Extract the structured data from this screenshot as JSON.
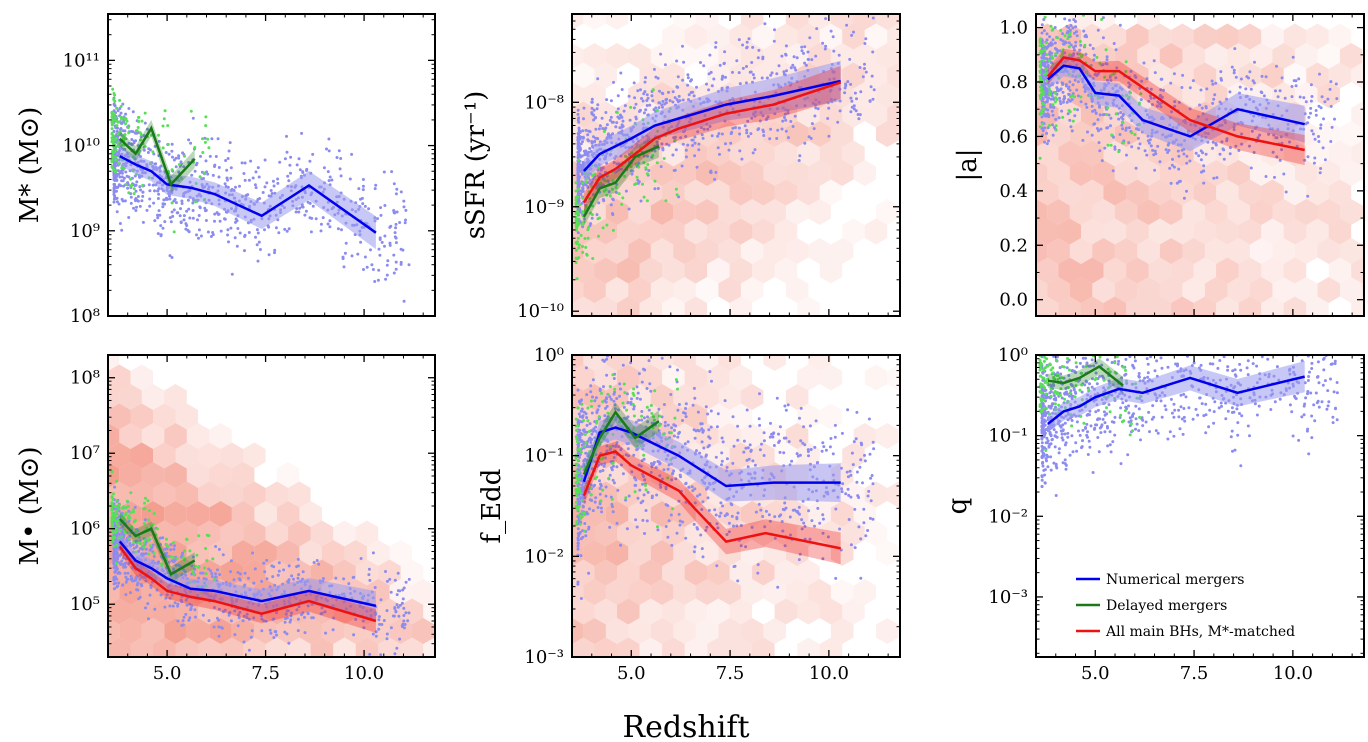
{
  "figure": {
    "xlabel": "Redshift",
    "colors": {
      "numerical": "#0000ee",
      "delayed": "#1a7a1a",
      "matched": "#ee1111",
      "scatter_blue": "#8c8cf0",
      "scatter_green": "#55e055",
      "hex": "#f28d7c",
      "band_blue": "#9a9af0"
    }
  },
  "legend": {
    "placement": "lower-right panel, bottom",
    "items": [
      {
        "key": "numerical",
        "label": "Numerical mergers"
      },
      {
        "key": "delayed",
        "label": "Delayed mergers"
      },
      {
        "key": "matched",
        "label": "All main BHs, M*-matched"
      }
    ]
  },
  "chart_data": [
    {
      "id": "mstar",
      "type": "scatter",
      "ylabel": "M* (M⊙)",
      "yscale": "log",
      "ylim": [
        100000000.0,
        350000000000.0
      ],
      "xlim": [
        3.5,
        11.8
      ],
      "hexbin": false,
      "xticks": [],
      "yticks": [
        {
          "v": 100000000.0,
          "label": "10^8"
        },
        {
          "v": 1000000000.0,
          "label": "10^9"
        },
        {
          "v": 10000000000.0,
          "label": "10^10"
        },
        {
          "v": 100000000000.0,
          "label": "10^11"
        }
      ],
      "series": [
        {
          "key": "numerical",
          "x": [
            3.8,
            4.2,
            4.6,
            5.0,
            5.6,
            6.2,
            7.4,
            8.6,
            10.3
          ],
          "y": [
            7500000000.0,
            6000000000.0,
            5000000000.0,
            3500000000.0,
            3200000000.0,
            2700000000.0,
            1500000000.0,
            3400000000.0,
            950000000.0
          ]
        },
        {
          "key": "delayed",
          "x": [
            3.8,
            4.2,
            4.6,
            5.1,
            5.7
          ],
          "y": [
            12000000000.0,
            8000000000.0,
            16000000000.0,
            3500000000.0,
            7000000000.0
          ]
        }
      ]
    },
    {
      "id": "ssfr",
      "type": "scatter",
      "ylabel": "sSFR (yr⁻¹)",
      "yscale": "log",
      "ylim": [
        9e-11,
        7e-08
      ],
      "xlim": [
        3.5,
        11.8
      ],
      "hexbin": true,
      "xticks": [],
      "yticks": [
        {
          "v": 1e-10,
          "label": "10^-10"
        },
        {
          "v": 1e-09,
          "label": "10^-9"
        },
        {
          "v": 1e-08,
          "label": "10^-8"
        }
      ],
      "series": [
        {
          "key": "numerical",
          "x": [
            3.8,
            4.2,
            4.6,
            5.0,
            5.6,
            6.2,
            7.4,
            8.6,
            10.3
          ],
          "y": [
            2.2e-09,
            3.2e-09,
            3.8e-09,
            4.5e-09,
            6e-09,
            7e-09,
            9.5e-09,
            1.15e-08,
            1.6e-08
          ]
        },
        {
          "key": "delayed",
          "x": [
            3.8,
            4.2,
            4.6,
            5.1,
            5.7
          ],
          "y": [
            8e-10,
            1.5e-09,
            1.7e-09,
            3e-09,
            3.8e-09
          ]
        },
        {
          "key": "matched",
          "x": [
            3.8,
            4.2,
            4.6,
            5.0,
            5.6,
            6.2,
            7.4,
            8.6,
            10.3
          ],
          "y": [
            1.1e-09,
            1.9e-09,
            2.3e-09,
            3e-09,
            4.5e-09,
            5.6e-09,
            7.8e-09,
            9.5e-09,
            1.55e-08
          ]
        }
      ]
    },
    {
      "id": "spin",
      "type": "scatter",
      "ylabel": "|a|",
      "yscale": "linear",
      "ylim": [
        -0.06,
        1.05
      ],
      "xlim": [
        3.5,
        11.8
      ],
      "hexbin": true,
      "xticks": [],
      "yticks": [
        {
          "v": 0.0,
          "label": "0.0"
        },
        {
          "v": 0.2,
          "label": "0.2"
        },
        {
          "v": 0.4,
          "label": "0.4"
        },
        {
          "v": 0.6,
          "label": "0.6"
        },
        {
          "v": 0.8,
          "label": "0.8"
        },
        {
          "v": 1.0,
          "label": "1.0"
        }
      ],
      "series": [
        {
          "key": "numerical",
          "x": [
            3.8,
            4.2,
            4.6,
            5.0,
            5.6,
            6.2,
            7.4,
            8.6,
            10.3
          ],
          "y": [
            0.81,
            0.86,
            0.85,
            0.76,
            0.75,
            0.66,
            0.6,
            0.7,
            0.645
          ]
        },
        {
          "key": "matched",
          "x": [
            3.8,
            4.2,
            4.6,
            5.0,
            5.6,
            6.2,
            7.4,
            8.6,
            10.3
          ],
          "y": [
            0.82,
            0.89,
            0.88,
            0.84,
            0.84,
            0.78,
            0.66,
            0.6,
            0.55
          ]
        }
      ]
    },
    {
      "id": "mbh",
      "type": "scatter",
      "ylabel": "M• (M⊙)",
      "yscale": "log",
      "ylim": [
        20000.0,
        200000000.0
      ],
      "xlim": [
        3.5,
        11.8
      ],
      "hexbin": true,
      "xticks": [
        {
          "v": 5.0,
          "label": "5.0"
        },
        {
          "v": 7.5,
          "label": "7.5"
        },
        {
          "v": 10.0,
          "label": "10.0"
        }
      ],
      "yticks": [
        {
          "v": 100000.0,
          "label": "10^5"
        },
        {
          "v": 1000000.0,
          "label": "10^6"
        },
        {
          "v": 10000000.0,
          "label": "10^7"
        },
        {
          "v": 100000000.0,
          "label": "10^8"
        }
      ],
      "series": [
        {
          "key": "numerical",
          "x": [
            3.8,
            4.2,
            4.6,
            5.0,
            5.6,
            6.2,
            7.4,
            8.6,
            10.3
          ],
          "y": [
            680000.0,
            380000.0,
            300000.0,
            220000.0,
            160000.0,
            150000.0,
            110000.0,
            150000.0,
            95000.0
          ]
        },
        {
          "key": "delayed",
          "x": [
            3.8,
            4.2,
            4.6,
            5.1,
            5.7
          ],
          "y": [
            1350000.0,
            800000.0,
            1000000.0,
            250000.0,
            380000.0
          ]
        },
        {
          "key": "matched",
          "x": [
            3.8,
            4.2,
            4.6,
            5.0,
            5.6,
            6.2,
            7.4,
            8.6,
            10.3
          ],
          "y": [
            580000.0,
            300000.0,
            220000.0,
            150000.0,
            125000.0,
            110000.0,
            75000.0,
            110000.0,
            60000.0
          ]
        }
      ]
    },
    {
      "id": "fedd",
      "type": "scatter",
      "ylabel": "f_Edd",
      "yscale": "log",
      "ylim": [
        0.001,
        1.0
      ],
      "xlim": [
        3.5,
        11.8
      ],
      "hexbin": true,
      "xticks": [
        {
          "v": 5.0,
          "label": "5.0"
        },
        {
          "v": 7.5,
          "label": "7.5"
        },
        {
          "v": 10.0,
          "label": "10.0"
        }
      ],
      "yticks": [
        {
          "v": 0.001,
          "label": "10^-3"
        },
        {
          "v": 0.01,
          "label": "10^-2"
        },
        {
          "v": 0.1,
          "label": "10^-1"
        },
        {
          "v": 1.0,
          "label": "10^0"
        }
      ],
      "series": [
        {
          "key": "numerical",
          "x": [
            3.8,
            4.2,
            4.6,
            5.0,
            5.6,
            6.2,
            7.4,
            8.6,
            10.3
          ],
          "y": [
            0.055,
            0.17,
            0.19,
            0.17,
            0.13,
            0.1,
            0.05,
            0.054,
            0.054
          ]
        },
        {
          "key": "delayed",
          "x": [
            3.8,
            4.2,
            4.6,
            5.1,
            5.7
          ],
          "y": [
            0.065,
            0.15,
            0.27,
            0.15,
            0.22
          ]
        },
        {
          "key": "matched",
          "x": [
            3.8,
            4.2,
            4.6,
            5.0,
            5.6,
            6.2,
            6.6,
            7.4,
            8.4,
            10.3
          ],
          "y": [
            0.04,
            0.1,
            0.11,
            0.08,
            0.06,
            0.045,
            0.03,
            0.014,
            0.017,
            0.012
          ]
        }
      ]
    },
    {
      "id": "q",
      "type": "scatter",
      "ylabel": "q",
      "yscale": "log",
      "ylim": [
        0.00018,
        1.0
      ],
      "xlim": [
        3.5,
        11.8
      ],
      "hexbin": false,
      "xticks": [
        {
          "v": 5.0,
          "label": "5.0"
        },
        {
          "v": 7.5,
          "label": "7.5"
        },
        {
          "v": 10.0,
          "label": "10.0"
        }
      ],
      "yticks": [
        {
          "v": 0.001,
          "label": "10^-3"
        },
        {
          "v": 0.01,
          "label": "10^-2"
        },
        {
          "v": 0.1,
          "label": "10^-1"
        },
        {
          "v": 1.0,
          "label": "10^0"
        }
      ],
      "series": [
        {
          "key": "numerical",
          "x": [
            3.8,
            4.2,
            4.6,
            5.0,
            5.6,
            6.2,
            7.4,
            8.6,
            10.3
          ],
          "y": [
            0.14,
            0.2,
            0.23,
            0.3,
            0.38,
            0.34,
            0.52,
            0.34,
            0.54
          ]
        },
        {
          "key": "delayed",
          "x": [
            3.8,
            4.2,
            4.6,
            5.1,
            5.7
          ],
          "y": [
            0.48,
            0.45,
            0.52,
            0.72,
            0.42
          ]
        }
      ]
    }
  ]
}
